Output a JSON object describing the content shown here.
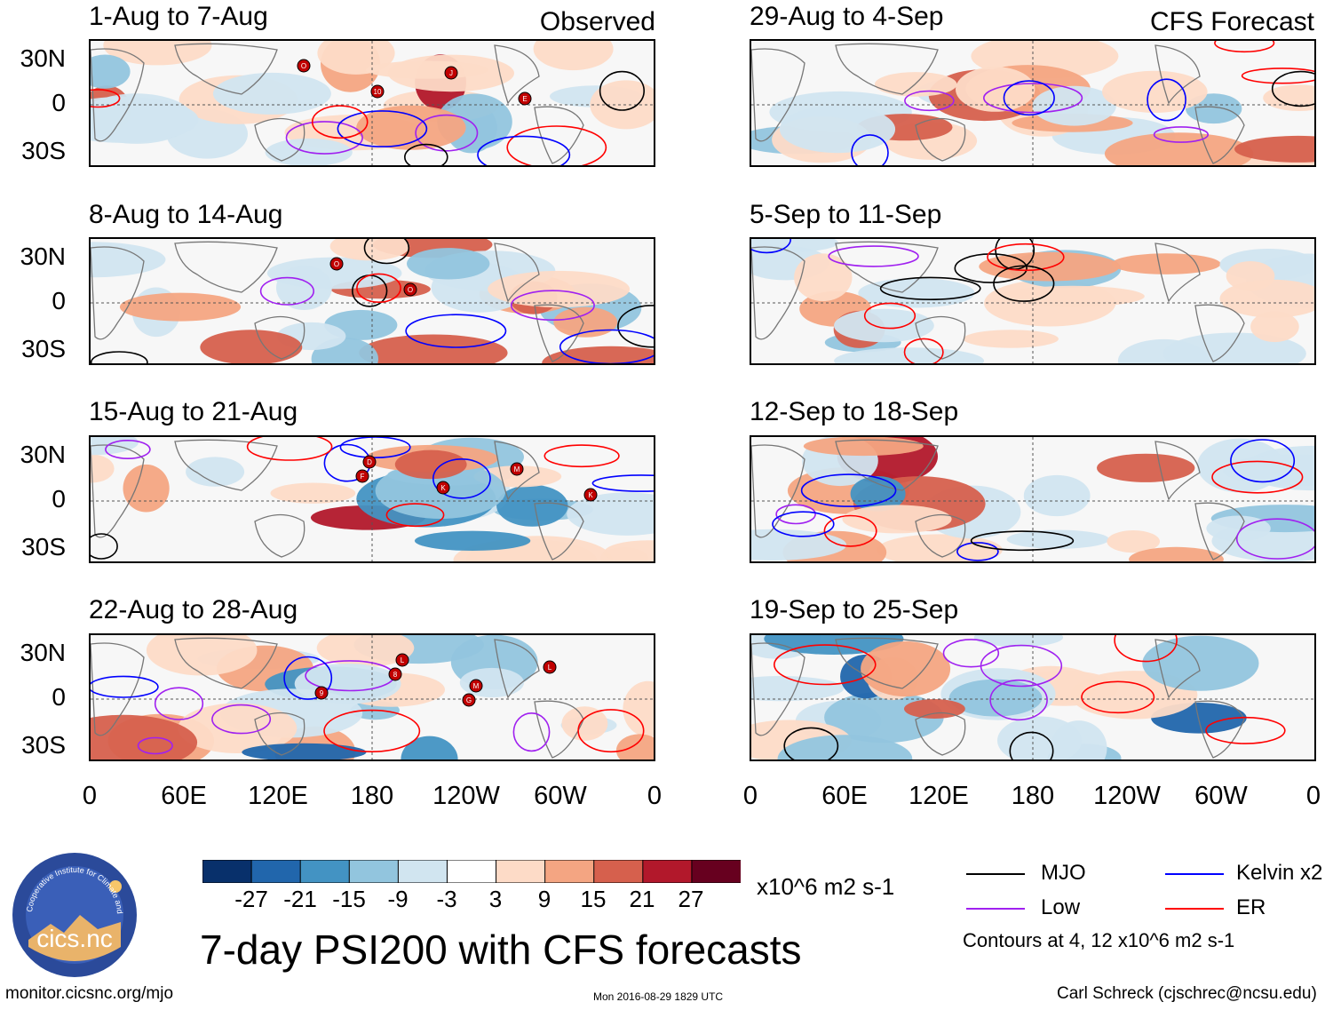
{
  "headers": {
    "observed": "Observed",
    "forecast": "CFS Forecast"
  },
  "panels": [
    {
      "title": "1-Aug to 7-Aug",
      "group": "observed",
      "storms": [
        "O",
        "10",
        "J",
        "E"
      ]
    },
    {
      "title": "8-Aug to 14-Aug",
      "group": "observed",
      "storms": [
        "O",
        "O"
      ]
    },
    {
      "title": "15-Aug to 21-Aug",
      "group": "observed",
      "storms": [
        "D",
        "K",
        "M",
        "K",
        "F"
      ]
    },
    {
      "title": "22-Aug to 28-Aug",
      "group": "observed",
      "storms": [
        "L",
        "M",
        "L",
        "9",
        "8",
        "G"
      ]
    },
    {
      "title": "29-Aug to 4-Sep",
      "group": "forecast",
      "storms": []
    },
    {
      "title": "5-Sep to 11-Sep",
      "group": "forecast",
      "storms": []
    },
    {
      "title": "12-Sep to 18-Sep",
      "group": "forecast",
      "storms": []
    },
    {
      "title": "19-Sep to 25-Sep",
      "group": "forecast",
      "storms": []
    }
  ],
  "axes": {
    "lat_labels": [
      "30N",
      "0",
      "30S"
    ],
    "lon_labels": [
      "0",
      "60E",
      "120E",
      "180",
      "120W",
      "60W",
      "0"
    ]
  },
  "colorbar": {
    "ticks": [
      "-27",
      "-21",
      "-15",
      "-9",
      "-3",
      "3",
      "9",
      "15",
      "21",
      "27"
    ],
    "colors": [
      "#08306b",
      "#2166ac",
      "#4393c3",
      "#92c5de",
      "#d1e5f0",
      "#ffffff",
      "#fddbc7",
      "#f4a582",
      "#d6604d",
      "#b2182b",
      "#67001f"
    ],
    "units": "x10^6 m2 s-1"
  },
  "legend": {
    "items": [
      {
        "label": "MJO",
        "color": "#000000"
      },
      {
        "label": "Kelvin x2",
        "color": "#0000ff"
      },
      {
        "label": "Low",
        "color": "#a020f0"
      },
      {
        "label": "ER",
        "color": "#ff0000"
      }
    ],
    "note": "Contours at 4, 12 x10^6 m2 s-1"
  },
  "title": "7-day PSI200 with CFS forecasts",
  "footer": {
    "url": "monitor.cicsnc.org/mjo",
    "timestamp": "Mon 2016-08-29 1829 UTC",
    "author": "Carl Schreck (cjschrec@ncsu.edu)"
  },
  "logo": {
    "text": "cics.nc",
    "ring_text": "Cooperative Institute for Climate and Satellites"
  },
  "chart_data": {
    "type": "heatmap",
    "variable": "PSI200 anomaly",
    "units": "x10^6 m2 s-1",
    "levels": [
      -27,
      -21,
      -15,
      -9,
      -3,
      3,
      9,
      15,
      21,
      27
    ],
    "lon_ticks": [
      "0",
      "60E",
      "120E",
      "180",
      "120W",
      "60W",
      "0"
    ],
    "lat_ticks": [
      "30N",
      "0",
      "30S"
    ],
    "contour_values": [
      4,
      12
    ],
    "contour_types": [
      "MJO",
      "Kelvin x2",
      "Low",
      "ER"
    ]
  }
}
